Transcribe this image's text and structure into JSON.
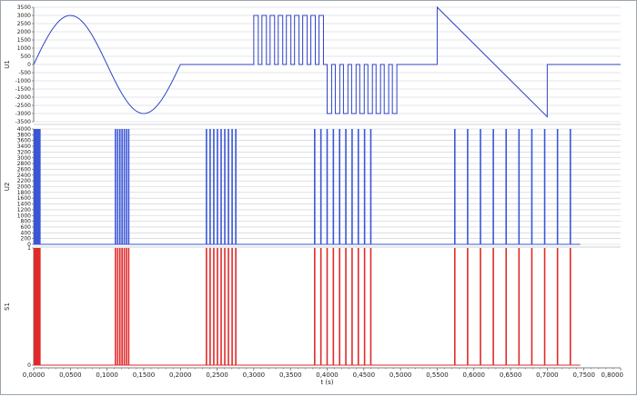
{
  "colors": {
    "signal": "#2f43c8",
    "bars_u2": "#3a56d6",
    "bars_s1": "#e02a2a",
    "grid": "#c8ccd2",
    "axis": "#555a60"
  },
  "chart_data": [
    {
      "type": "line",
      "ylabel": "U1",
      "ylim": [
        -3500,
        3500
      ],
      "yticks": [
        "3500",
        "3000",
        "2500",
        "2000",
        "1500",
        "1000",
        "500",
        "0",
        "-500",
        "-1000",
        "-1500",
        "-2000",
        "-2500",
        "-3000",
        "-3500"
      ],
      "xlim": [
        0,
        0.8
      ],
      "grid": true,
      "segments": [
        {
          "shape": "sine",
          "x_start": 0.0,
          "x_end": 0.2,
          "amplitude": 3000,
          "period": 0.2
        },
        {
          "shape": "constant",
          "x_start": 0.2,
          "x_end": 0.3,
          "value": 0
        },
        {
          "shape": "pulses",
          "x_start": 0.3,
          "x_end": 0.4,
          "value": 3000,
          "count": 9
        },
        {
          "shape": "pulses",
          "x_start": 0.4,
          "x_end": 0.5,
          "value": -3000,
          "count": 9
        },
        {
          "shape": "constant",
          "x_start": 0.5,
          "x_end": 0.55,
          "value": 0
        },
        {
          "shape": "ramp",
          "x_start": 0.55,
          "x_end": 0.7,
          "value_start": 3500,
          "value_end": -3200
        },
        {
          "shape": "constant",
          "x_start": 0.7,
          "x_end": 0.8,
          "value": 0
        }
      ]
    },
    {
      "type": "bar",
      "ylabel": "U2",
      "ylim": [
        0,
        4000
      ],
      "yticks": [
        "4000",
        "3800",
        "3600",
        "3400",
        "3200",
        "3000",
        "2800",
        "2600",
        "2400",
        "2200",
        "2000",
        "1800",
        "1600",
        "1400",
        "1200",
        "1000",
        "800",
        "600",
        "400",
        "200",
        "0"
      ],
      "xlim": [
        0,
        0.8
      ],
      "grid": true,
      "pulse_value": 4000,
      "pulse_x": [
        0.001,
        0.0025,
        0.004,
        0.0055,
        0.007,
        0.0085,
        0.1115,
        0.1145,
        0.1175,
        0.1205,
        0.1235,
        0.1265,
        0.1295,
        0.2355,
        0.2405,
        0.2455,
        0.2505,
        0.2555,
        0.2605,
        0.2655,
        0.2705,
        0.2755,
        0.383,
        0.3915,
        0.4,
        0.4085,
        0.417,
        0.4255,
        0.434,
        0.4425,
        0.451,
        0.4595,
        0.574,
        0.5915,
        0.609,
        0.6265,
        0.644,
        0.6615,
        0.679,
        0.6965,
        0.714,
        0.7315
      ],
      "tail_value": 0,
      "tail_end": 0.745
    },
    {
      "type": "bar",
      "ylabel": "S1",
      "ylim": [
        0,
        1
      ],
      "yticks": [
        "1",
        "0"
      ],
      "xlim": [
        0,
        0.8
      ],
      "grid": false,
      "pulse_value": 1,
      "pulse_x": [
        0.001,
        0.0025,
        0.004,
        0.0055,
        0.007,
        0.0085,
        0.1115,
        0.1145,
        0.1175,
        0.1205,
        0.1235,
        0.1265,
        0.1295,
        0.2355,
        0.2405,
        0.2455,
        0.2505,
        0.2555,
        0.2605,
        0.2655,
        0.2705,
        0.2755,
        0.383,
        0.3915,
        0.4,
        0.4085,
        0.417,
        0.4255,
        0.434,
        0.4425,
        0.451,
        0.4595,
        0.574,
        0.5915,
        0.609,
        0.6265,
        0.644,
        0.6615,
        0.679,
        0.6965,
        0.714,
        0.7315
      ],
      "tail_end": 0.745
    }
  ],
  "x_axis": {
    "label": "t (s)",
    "ticks": [
      {
        "value": 0.0,
        "label": "0,0000"
      },
      {
        "value": 0.05,
        "label": "0,0500"
      },
      {
        "value": 0.1,
        "label": "0,1000"
      },
      {
        "value": 0.15,
        "label": "0,1500"
      },
      {
        "value": 0.2,
        "label": "0,2000"
      },
      {
        "value": 0.25,
        "label": "0,2500"
      },
      {
        "value": 0.3,
        "label": "0,3000"
      },
      {
        "value": 0.35,
        "label": "0,3500"
      },
      {
        "value": 0.4,
        "label": "0,4000"
      },
      {
        "value": 0.45,
        "label": "0,4500"
      },
      {
        "value": 0.5,
        "label": "0,5000"
      },
      {
        "value": 0.55,
        "label": "0,5500"
      },
      {
        "value": 0.6,
        "label": "0,6000"
      },
      {
        "value": 0.65,
        "label": "0,6500"
      },
      {
        "value": 0.7,
        "label": "0,7000"
      },
      {
        "value": 0.75,
        "label": "0,7500"
      },
      {
        "value": 0.8,
        "label": "0,8000"
      }
    ]
  }
}
